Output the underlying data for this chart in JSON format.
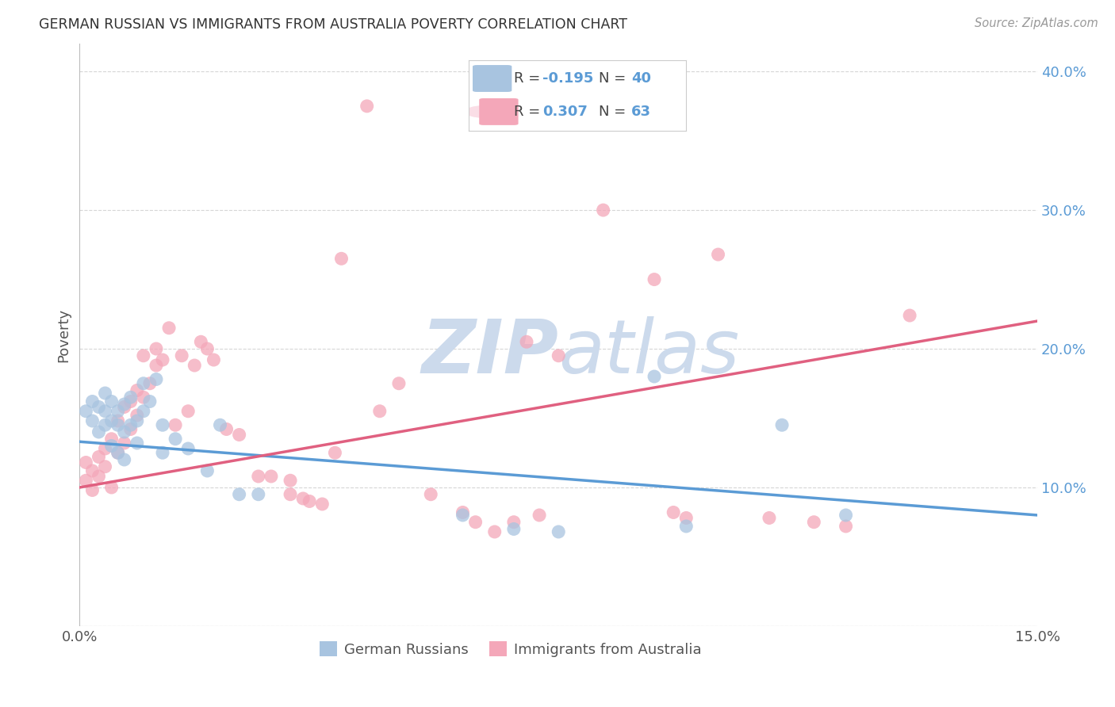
{
  "title": "GERMAN RUSSIAN VS IMMIGRANTS FROM AUSTRALIA POVERTY CORRELATION CHART",
  "source": "Source: ZipAtlas.com",
  "ylabel": "Poverty",
  "xlim": [
    0.0,
    0.15
  ],
  "ylim": [
    0.0,
    0.42
  ],
  "xticks": [
    0.0,
    0.03,
    0.06,
    0.09,
    0.12,
    0.15
  ],
  "yticks": [
    0.0,
    0.1,
    0.2,
    0.3,
    0.4
  ],
  "series1_color": "#a8c4e0",
  "series2_color": "#f4a7b9",
  "line1_color": "#5b9bd5",
  "line2_color": "#e06080",
  "watermark_color": "#ccdaec",
  "background_color": "#ffffff",
  "grid_color": "#cccccc",
  "blue_scatter_x": [
    0.001,
    0.002,
    0.002,
    0.003,
    0.003,
    0.004,
    0.004,
    0.004,
    0.005,
    0.005,
    0.005,
    0.006,
    0.006,
    0.006,
    0.007,
    0.007,
    0.007,
    0.008,
    0.008,
    0.009,
    0.009,
    0.01,
    0.01,
    0.011,
    0.012,
    0.013,
    0.013,
    0.015,
    0.017,
    0.02,
    0.022,
    0.025,
    0.028,
    0.06,
    0.068,
    0.075,
    0.09,
    0.095,
    0.11,
    0.12
  ],
  "blue_scatter_y": [
    0.155,
    0.148,
    0.162,
    0.158,
    0.14,
    0.168,
    0.145,
    0.155,
    0.162,
    0.148,
    0.13,
    0.155,
    0.145,
    0.125,
    0.16,
    0.14,
    0.12,
    0.145,
    0.165,
    0.148,
    0.132,
    0.175,
    0.155,
    0.162,
    0.178,
    0.145,
    0.125,
    0.135,
    0.128,
    0.112,
    0.145,
    0.095,
    0.095,
    0.08,
    0.07,
    0.068,
    0.18,
    0.072,
    0.145,
    0.08
  ],
  "pink_scatter_x": [
    0.001,
    0.001,
    0.002,
    0.002,
    0.003,
    0.003,
    0.004,
    0.004,
    0.005,
    0.005,
    0.006,
    0.006,
    0.007,
    0.007,
    0.008,
    0.008,
    0.009,
    0.009,
    0.01,
    0.01,
    0.011,
    0.012,
    0.012,
    0.013,
    0.014,
    0.015,
    0.016,
    0.017,
    0.018,
    0.019,
    0.02,
    0.021,
    0.023,
    0.025,
    0.028,
    0.03,
    0.033,
    0.033,
    0.035,
    0.036,
    0.038,
    0.04,
    0.041,
    0.045,
    0.047,
    0.05,
    0.055,
    0.06,
    0.062,
    0.065,
    0.068,
    0.07,
    0.072,
    0.075,
    0.082,
    0.09,
    0.093,
    0.095,
    0.1,
    0.108,
    0.115,
    0.12,
    0.13
  ],
  "pink_scatter_y": [
    0.105,
    0.118,
    0.098,
    0.112,
    0.108,
    0.122,
    0.115,
    0.128,
    0.1,
    0.135,
    0.125,
    0.148,
    0.132,
    0.158,
    0.142,
    0.162,
    0.152,
    0.17,
    0.165,
    0.195,
    0.175,
    0.188,
    0.2,
    0.192,
    0.215,
    0.145,
    0.195,
    0.155,
    0.188,
    0.205,
    0.2,
    0.192,
    0.142,
    0.138,
    0.108,
    0.108,
    0.095,
    0.105,
    0.092,
    0.09,
    0.088,
    0.125,
    0.265,
    0.375,
    0.155,
    0.175,
    0.095,
    0.082,
    0.075,
    0.068,
    0.075,
    0.205,
    0.08,
    0.195,
    0.3,
    0.25,
    0.082,
    0.078,
    0.268,
    0.078,
    0.075,
    0.072,
    0.224
  ],
  "legend_r1_val": "-0.195",
  "legend_n1_val": "40",
  "legend_r2_val": "0.307",
  "legend_n2_val": "63"
}
